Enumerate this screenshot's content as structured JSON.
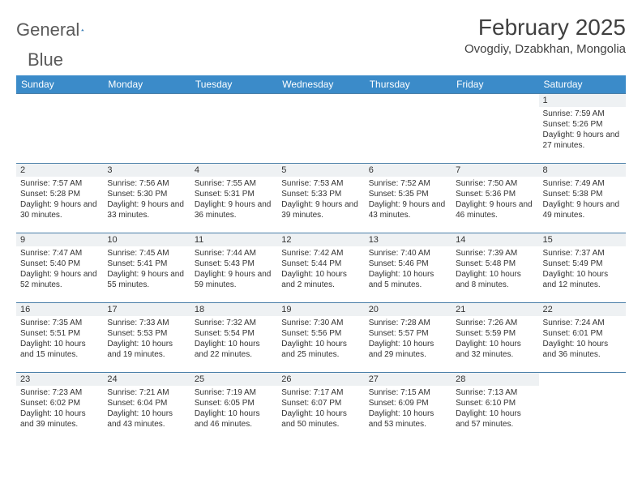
{
  "logo": {
    "word1": "General",
    "word2": "Blue"
  },
  "title": "February 2025",
  "location": "Ovogdiy, Dzabkhan, Mongolia",
  "colors": {
    "header_bg": "#3b8bc9",
    "header_text": "#ffffff",
    "daynum_bg": "#eef1f3",
    "row_border": "#4a7fa8",
    "body_text": "#333333",
    "title_text": "#404040",
    "logo_gray": "#5a5a5a",
    "logo_blue": "#2d7dbf",
    "background": "#ffffff"
  },
  "weekdays": [
    "Sunday",
    "Monday",
    "Tuesday",
    "Wednesday",
    "Thursday",
    "Friday",
    "Saturday"
  ],
  "weeks": [
    [
      null,
      null,
      null,
      null,
      null,
      null,
      {
        "n": "1",
        "sr": "7:59 AM",
        "ss": "5:26 PM",
        "dl": "9 hours and 27 minutes."
      }
    ],
    [
      {
        "n": "2",
        "sr": "7:57 AM",
        "ss": "5:28 PM",
        "dl": "9 hours and 30 minutes."
      },
      {
        "n": "3",
        "sr": "7:56 AM",
        "ss": "5:30 PM",
        "dl": "9 hours and 33 minutes."
      },
      {
        "n": "4",
        "sr": "7:55 AM",
        "ss": "5:31 PM",
        "dl": "9 hours and 36 minutes."
      },
      {
        "n": "5",
        "sr": "7:53 AM",
        "ss": "5:33 PM",
        "dl": "9 hours and 39 minutes."
      },
      {
        "n": "6",
        "sr": "7:52 AM",
        "ss": "5:35 PM",
        "dl": "9 hours and 43 minutes."
      },
      {
        "n": "7",
        "sr": "7:50 AM",
        "ss": "5:36 PM",
        "dl": "9 hours and 46 minutes."
      },
      {
        "n": "8",
        "sr": "7:49 AM",
        "ss": "5:38 PM",
        "dl": "9 hours and 49 minutes."
      }
    ],
    [
      {
        "n": "9",
        "sr": "7:47 AM",
        "ss": "5:40 PM",
        "dl": "9 hours and 52 minutes."
      },
      {
        "n": "10",
        "sr": "7:45 AM",
        "ss": "5:41 PM",
        "dl": "9 hours and 55 minutes."
      },
      {
        "n": "11",
        "sr": "7:44 AM",
        "ss": "5:43 PM",
        "dl": "9 hours and 59 minutes."
      },
      {
        "n": "12",
        "sr": "7:42 AM",
        "ss": "5:44 PM",
        "dl": "10 hours and 2 minutes."
      },
      {
        "n": "13",
        "sr": "7:40 AM",
        "ss": "5:46 PM",
        "dl": "10 hours and 5 minutes."
      },
      {
        "n": "14",
        "sr": "7:39 AM",
        "ss": "5:48 PM",
        "dl": "10 hours and 8 minutes."
      },
      {
        "n": "15",
        "sr": "7:37 AM",
        "ss": "5:49 PM",
        "dl": "10 hours and 12 minutes."
      }
    ],
    [
      {
        "n": "16",
        "sr": "7:35 AM",
        "ss": "5:51 PM",
        "dl": "10 hours and 15 minutes."
      },
      {
        "n": "17",
        "sr": "7:33 AM",
        "ss": "5:53 PM",
        "dl": "10 hours and 19 minutes."
      },
      {
        "n": "18",
        "sr": "7:32 AM",
        "ss": "5:54 PM",
        "dl": "10 hours and 22 minutes."
      },
      {
        "n": "19",
        "sr": "7:30 AM",
        "ss": "5:56 PM",
        "dl": "10 hours and 25 minutes."
      },
      {
        "n": "20",
        "sr": "7:28 AM",
        "ss": "5:57 PM",
        "dl": "10 hours and 29 minutes."
      },
      {
        "n": "21",
        "sr": "7:26 AM",
        "ss": "5:59 PM",
        "dl": "10 hours and 32 minutes."
      },
      {
        "n": "22",
        "sr": "7:24 AM",
        "ss": "6:01 PM",
        "dl": "10 hours and 36 minutes."
      }
    ],
    [
      {
        "n": "23",
        "sr": "7:23 AM",
        "ss": "6:02 PM",
        "dl": "10 hours and 39 minutes."
      },
      {
        "n": "24",
        "sr": "7:21 AM",
        "ss": "6:04 PM",
        "dl": "10 hours and 43 minutes."
      },
      {
        "n": "25",
        "sr": "7:19 AM",
        "ss": "6:05 PM",
        "dl": "10 hours and 46 minutes."
      },
      {
        "n": "26",
        "sr": "7:17 AM",
        "ss": "6:07 PM",
        "dl": "10 hours and 50 minutes."
      },
      {
        "n": "27",
        "sr": "7:15 AM",
        "ss": "6:09 PM",
        "dl": "10 hours and 53 minutes."
      },
      {
        "n": "28",
        "sr": "7:13 AM",
        "ss": "6:10 PM",
        "dl": "10 hours and 57 minutes."
      },
      null
    ]
  ],
  "labels": {
    "sunrise": "Sunrise:",
    "sunset": "Sunset:",
    "daylight": "Daylight:"
  }
}
